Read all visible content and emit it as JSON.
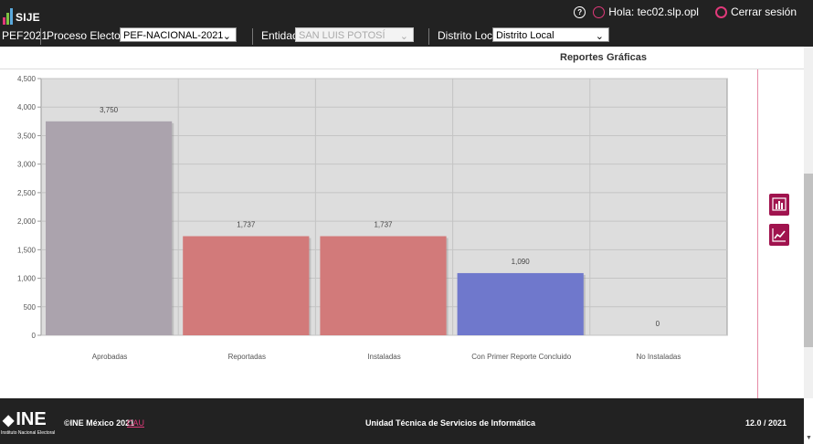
{
  "header": {
    "logo_text": "SIJE",
    "help_icon": "help-circle-icon",
    "greeting": "Hola: tec02.slp.opl",
    "logout": "Cerrar sesión"
  },
  "selectors": {
    "process_code": "PEF2021",
    "process_label": "Proceso Electoral",
    "process_value": "PEF-NACIONAL-2021",
    "entity_label": "Entidad",
    "entity_value": "SAN LUIS POTOSÍ",
    "district_label": "Distrito Local",
    "district_value": "Distrito Local"
  },
  "subnav": {
    "reports": "Reportes",
    "charts": "Gráficas"
  },
  "chart_data": {
    "type": "bar",
    "categories": [
      "Aprobadas",
      "Reportadas",
      "Instaladas",
      "Con Primer Reporte Concluido",
      "No Instaladas"
    ],
    "values": [
      3750,
      1737,
      1737,
      1090,
      0
    ],
    "value_labels": [
      "3,750",
      "1,737",
      "1,737",
      "1,090",
      "0"
    ],
    "bar_colors": [
      "#aba3ad",
      "#d27a7a",
      "#d27a7a",
      "#6f78cc",
      "#cccccc"
    ],
    "ylim": [
      0,
      4500
    ],
    "yticks": [
      0,
      500,
      1000,
      1500,
      2000,
      2500,
      3000,
      3500,
      4000,
      4500
    ],
    "ytick_labels": [
      "0",
      "500",
      "1,000",
      "1,500",
      "2,000",
      "2,500",
      "3,000",
      "3,500",
      "4,000",
      "4,500"
    ],
    "grid": true,
    "plot_background": "#dddddd"
  },
  "side_buttons": {
    "bar_chart": "bar-chart-icon",
    "line_chart": "line-chart-icon",
    "color": "#a0134e"
  },
  "footer": {
    "org_logo": "INE",
    "org_name": "Instituto Nacional Electoral",
    "copyright": "©INE México 2021",
    "cau": "CAU",
    "unit": "Unidad Técnica de Servicios de Informática",
    "version": "12.0 / 2021"
  }
}
